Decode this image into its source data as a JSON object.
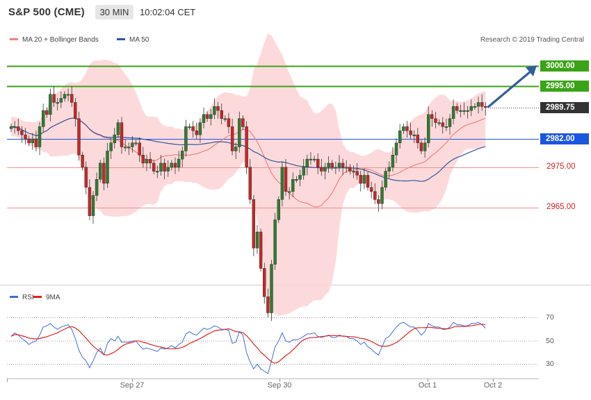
{
  "header": {
    "instrument": "S&P 500 (CME)",
    "timeframe": "30 MIN",
    "time": "10:02:04 CET"
  },
  "legend": {
    "ma20_bb": "MA 20 + Bollinger Bands",
    "ma50": "MA 50"
  },
  "research": "Research © 2019 Trading Central",
  "levels": [
    {
      "label": "3000.00",
      "value": 3000.0,
      "color": "#3aa317",
      "style": "box"
    },
    {
      "label": "2995.00",
      "value": 2995.0,
      "color": "#3aa317",
      "style": "box"
    },
    {
      "label": "2989.75",
      "value": 2989.75,
      "color": "#333333",
      "style": "box"
    },
    {
      "label": "2982.00",
      "value": 2982.0,
      "color": "#1a56e0",
      "style": "box"
    },
    {
      "label": "2975.00",
      "value": 2975.0,
      "color": "#d32020",
      "style": "plain"
    },
    {
      "label": "2965.00",
      "value": 2965.0,
      "color": "#d32020",
      "style": "plain"
    }
  ],
  "rsi_panel": {
    "legend_rsi": "RSI",
    "legend_ma": "9MA",
    "ticks": [
      "70",
      "50",
      "30"
    ],
    "tick_values": [
      70,
      50,
      30
    ],
    "rsi_color": "#3a6fd8",
    "ma_color": "#e02020"
  },
  "x_labels": [
    "Sep 27",
    "Sep 30",
    "Oct 1",
    "Oct 2"
  ],
  "colors": {
    "bull": "#2e7d32",
    "bear": "#c62828",
    "bb_fill": "#fbd3d5",
    "ma20": "#f08080",
    "ma50": "#3057a0",
    "arrow": "#2f5f9e"
  },
  "chart_data": {
    "type": "candlestick",
    "ylim": [
      2940,
      3005
    ],
    "y_ticks": [
      2965.0,
      2975.0,
      2982.0,
      2989.75,
      2995.0,
      3000.0
    ],
    "close_series": [
      2985,
      2985,
      2984,
      2983,
      2982,
      2981,
      2982,
      2980,
      2985,
      2989,
      2988,
      2993,
      2991,
      2991,
      2992,
      2993,
      2993,
      2991,
      2987,
      2978,
      2975,
      2970,
      2963,
      2968,
      2972,
      2976,
      2971,
      2979,
      2981,
      2983,
      2986,
      2980,
      2980,
      2980,
      2981,
      2981,
      2978,
      2976,
      2977,
      2976,
      2974,
      2974,
      2976,
      2974,
      2975,
      2976,
      2975,
      2977,
      2979,
      2985,
      2985,
      2984,
      2983,
      2986,
      2988,
      2987,
      2988,
      2990,
      2989,
      2987,
      2987,
      2985,
      2979,
      2980,
      2987,
      2985,
      2975,
      2967,
      2955,
      2959,
      2950,
      2943,
      2939,
      2951,
      2962,
      2967,
      2975,
      2969,
      2969,
      2972,
      2972,
      2973,
      2975,
      2977,
      2977,
      2977,
      2975,
      2974,
      2975,
      2976,
      2975,
      2975,
      2976,
      2975,
      2975,
      2974,
      2974,
      2973,
      2971,
      2973,
      2970,
      2969,
      2967,
      2966,
      2970,
      2974,
      2975,
      2978,
      2981,
      2984,
      2985,
      2984,
      2983,
      2983,
      2981,
      2979,
      2981,
      2988,
      2987,
      2986,
      2986,
      2985,
      2985,
      2987,
      2990,
      2989,
      2989,
      2989,
      2989,
      2990,
      2990,
      2991,
      2990,
      2989.75
    ],
    "rsi": [
      54,
      57,
      55,
      52,
      50,
      47,
      49,
      50,
      55,
      62,
      63,
      65,
      62,
      60,
      62,
      63,
      64,
      60,
      52,
      42,
      36,
      33,
      27,
      33,
      40,
      44,
      38,
      48,
      52,
      50,
      54,
      49,
      49,
      49,
      50,
      50,
      46,
      43,
      44,
      43,
      42,
      41,
      44,
      43,
      44,
      46,
      44,
      47,
      49,
      56,
      58,
      56,
      55,
      58,
      61,
      60,
      61,
      63,
      62,
      60,
      60,
      59,
      48,
      49,
      58,
      55,
      40,
      32,
      26,
      30,
      26,
      24,
      22,
      33,
      45,
      50,
      57,
      50,
      49,
      51,
      51,
      52,
      54,
      56,
      56,
      57,
      54,
      53,
      54,
      55,
      53,
      53,
      55,
      54,
      54,
      52,
      52,
      50,
      47,
      49,
      45,
      43,
      40,
      38,
      45,
      52,
      54,
      58,
      62,
      65,
      66,
      64,
      62,
      62,
      59,
      55,
      58,
      65,
      63,
      62,
      62,
      60,
      60,
      62,
      66,
      64,
      64,
      63,
      63,
      65,
      65,
      66,
      64,
      61
    ],
    "rsi_ylim": [
      20,
      80
    ]
  }
}
